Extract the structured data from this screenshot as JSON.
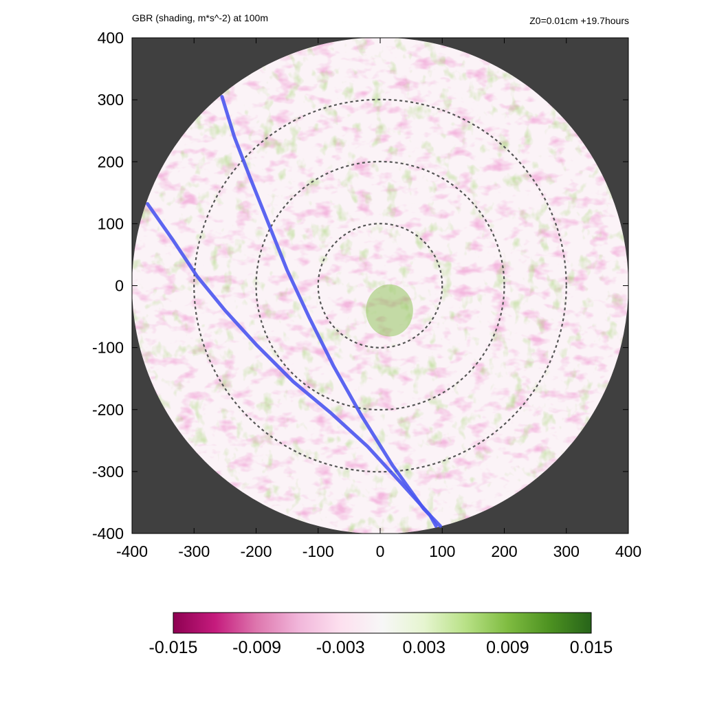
{
  "header": {
    "left_title": "GBR (shading, m*s^-2) at 100m",
    "right_title": "Z0=0.01cm  +19.7hours"
  },
  "chart_data": {
    "type": "heatmap",
    "title": "GBR (shading, m*s^-2) at 100m",
    "subtitle": "Z0=0.01cm  +19.7hours",
    "xlim": [
      -400,
      400
    ],
    "ylim": [
      -400,
      400
    ],
    "x_ticks": [
      "-400",
      "-300",
      "-200",
      "-100",
      "0",
      "100",
      "200",
      "300",
      "400"
    ],
    "y_ticks": [
      "400",
      "300",
      "200",
      "100",
      "0",
      "-100",
      "-200",
      "-300",
      "-400"
    ],
    "domain_radius": 400,
    "outside_color": "#404040",
    "range_rings": [
      100,
      200,
      300
    ],
    "colorbar": {
      "min": -0.015,
      "max": 0.015,
      "tick_labels": [
        "-0.015",
        "-0.009",
        "-0.003",
        "0.003",
        "0.009",
        "0.015"
      ],
      "colors": [
        "#8e0152",
        "#c51b7d",
        "#de77ae",
        "#f1b6da",
        "#fde0ef",
        "#f7f7f7",
        "#e6f5d0",
        "#b8e186",
        "#7fbc41",
        "#4d9221",
        "#276419"
      ]
    },
    "tracks": [
      {
        "color": "#4a55f0",
        "points": [
          [
            -255,
            305
          ],
          [
            -235,
            240
          ],
          [
            -210,
            175
          ],
          [
            -180,
            100
          ],
          [
            -150,
            25
          ],
          [
            -115,
            -50
          ],
          [
            -75,
            -130
          ],
          [
            -30,
            -210
          ],
          [
            20,
            -290
          ],
          [
            70,
            -360
          ],
          [
            97,
            -388
          ]
        ]
      },
      {
        "color": "#4a55f0",
        "points": [
          [
            -375,
            132
          ],
          [
            -335,
            75
          ],
          [
            -295,
            15
          ],
          [
            -250,
            -40
          ],
          [
            -200,
            -95
          ],
          [
            -140,
            -155
          ],
          [
            -80,
            -205
          ],
          [
            -20,
            -260
          ],
          [
            35,
            -320
          ],
          [
            80,
            -370
          ],
          [
            90,
            -388
          ]
        ]
      }
    ]
  }
}
